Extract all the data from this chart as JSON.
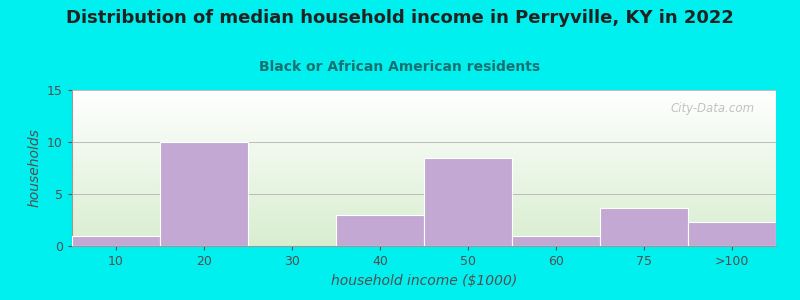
{
  "title": "Distribution of median household income in Perryville, KY in 2022",
  "subtitle": "Black or African American residents",
  "xlabel": "household income ($1000)",
  "ylabel": "households",
  "categories": [
    "10",
    "20",
    "30",
    "40",
    "50",
    "60",
    "75",
    ">100"
  ],
  "values": [
    1,
    10,
    0,
    3,
    8.5,
    1,
    3.7,
    2.3
  ],
  "bar_color": "#C4A8D4",
  "ylim": [
    0,
    15
  ],
  "yticks": [
    0,
    5,
    10,
    15
  ],
  "bg_color": "#00EFEF",
  "plot_bg_top_color": "#FFFFFF",
  "plot_bg_bottom_color": "#D8EED0",
  "title_color": "#222222",
  "subtitle_color": "#1A7070",
  "axis_label_color": "#505050",
  "tick_color": "#505050",
  "grid_color": "#BBBBBB",
  "watermark": "City-Data.com",
  "title_fontsize": 13,
  "subtitle_fontsize": 10,
  "axis_label_fontsize": 10,
  "tick_fontsize": 9
}
